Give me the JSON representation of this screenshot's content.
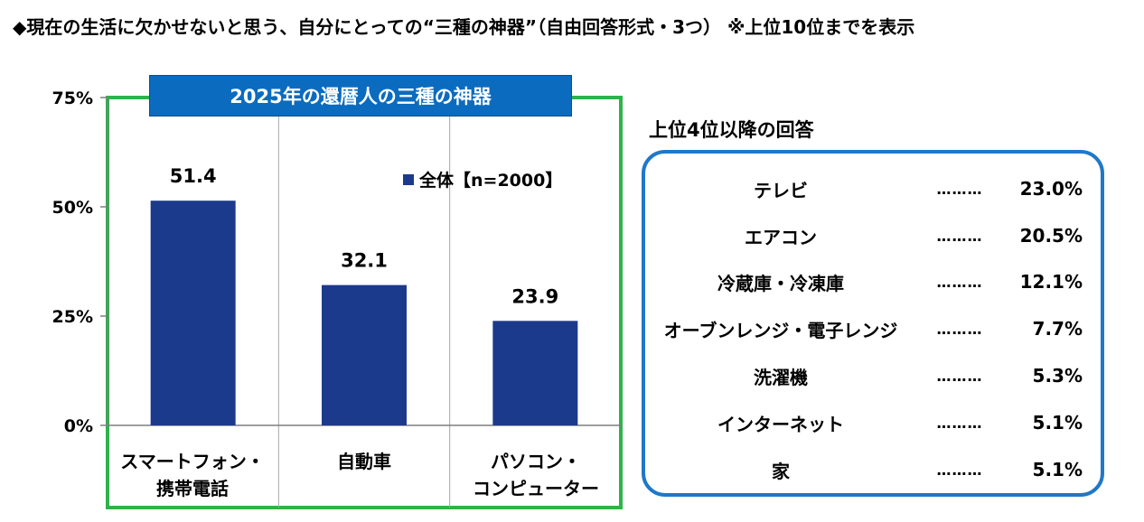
{
  "header": {
    "title": "◆現在の生活に欠かせないと思う、自分にとっての“三種の神器”（自由回答形式・3つ） ※上位10位までを表示"
  },
  "chart_data": {
    "type": "bar",
    "title": "2025年の還暦人の三種の神器",
    "categories": [
      "スマートフォン・\n携帯電話",
      "自動車",
      "パソコン・\nコンピューター"
    ],
    "series": [
      {
        "name": "全体【n=2000】",
        "values": [
          51.4,
          32.1,
          23.9
        ],
        "color": "#1c3a8c"
      }
    ],
    "data_labels": [
      "51.4",
      "32.1",
      "23.9"
    ],
    "yticks": [
      "0%",
      "25%",
      "50%",
      "75%"
    ],
    "ytick_values": [
      0,
      25,
      50,
      75
    ],
    "ylim": [
      0,
      75
    ],
    "xlabel": "",
    "ylabel": "",
    "grid": false,
    "legend_position": "top-right",
    "frame_color": "#2db34a"
  },
  "panel": {
    "heading": "上位4位以降の回答",
    "dots": "………",
    "items": [
      {
        "label": "テレビ",
        "value": "23.0%"
      },
      {
        "label": "エアコン",
        "value": "20.5%"
      },
      {
        "label": "冷蔵庫・冷凍庫",
        "value": "12.1%"
      },
      {
        "label": "オーブンレンジ・電子レンジ",
        "value": "7.7%"
      },
      {
        "label": "洗濯機",
        "value": "5.3%"
      },
      {
        "label": "インターネット",
        "value": "5.1%"
      },
      {
        "label": "家",
        "value": "5.1%"
      }
    ]
  }
}
